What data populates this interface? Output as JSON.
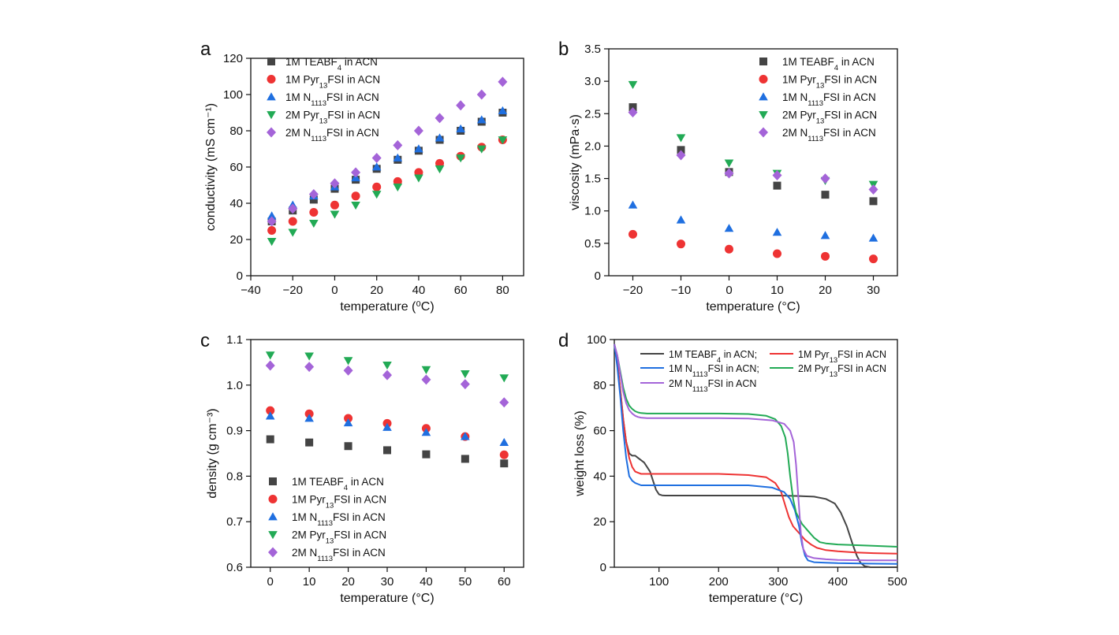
{
  "colors": {
    "teabf4_1m": "#444444",
    "pyr_1m": "#ee3333",
    "n1113_1m": "#1f6fe0",
    "pyr_2m": "#22aa55",
    "n1113_2m": "#a464d8"
  },
  "chart_data": [
    {
      "id": "a",
      "type": "scatter",
      "panel_label": "a",
      "xlabel": "temperature (⁰C)",
      "ylabel": "conductivity (mS cm⁻¹)",
      "xlim": [
        -40,
        90
      ],
      "ylim": [
        0,
        120
      ],
      "xticks": [
        -40,
        -20,
        0,
        20,
        40,
        60,
        80
      ],
      "yticks": [
        0,
        20,
        40,
        60,
        80,
        100,
        120
      ],
      "xtick_labels": [
        "−40",
        "−20",
        "0",
        "20",
        "40",
        "60",
        "80"
      ],
      "legend_position": "top-left",
      "series": [
        {
          "name": "1M TEABF4 in ACN",
          "marker": "square",
          "color_key": "teabf4_1m",
          "x": [
            -30,
            -20,
            -10,
            0,
            10,
            20,
            30,
            40,
            50,
            60,
            70,
            80
          ],
          "y": [
            30,
            36,
            42,
            48,
            53,
            59,
            64,
            69,
            75,
            80,
            85,
            90
          ]
        },
        {
          "name": "1M Pyr13FSI in ACN",
          "marker": "circle",
          "color_key": "pyr_1m",
          "x": [
            -30,
            -20,
            -10,
            0,
            10,
            20,
            30,
            40,
            50,
            60,
            70,
            80
          ],
          "y": [
            25,
            30,
            35,
            39,
            44,
            49,
            52,
            57,
            62,
            66,
            71,
            75
          ]
        },
        {
          "name": "1M N1113FSI in ACN",
          "marker": "triangle-up",
          "color_key": "n1113_1m",
          "x": [
            -30,
            -20,
            -10,
            0,
            10,
            20,
            30,
            40,
            50,
            60,
            70,
            80
          ],
          "y": [
            33,
            39,
            44,
            49,
            54,
            60,
            65,
            70,
            76,
            81,
            86,
            91
          ]
        },
        {
          "name": "2M Pyr13FSI in ACN",
          "marker": "triangle-down",
          "color_key": "pyr_2m",
          "x": [
            -30,
            -20,
            -10,
            0,
            10,
            20,
            30,
            40,
            50,
            60,
            70,
            80
          ],
          "y": [
            19,
            24,
            29,
            34,
            39,
            45,
            49,
            54,
            59,
            65,
            70,
            75
          ]
        },
        {
          "name": "2M N1113FSI in ACN",
          "marker": "diamond",
          "color_key": "n1113_2m",
          "x": [
            -30,
            -20,
            -10,
            0,
            10,
            20,
            30,
            40,
            50,
            60,
            70,
            80
          ],
          "y": [
            30,
            37,
            45,
            51,
            57,
            65,
            72,
            80,
            87,
            94,
            100,
            107
          ]
        }
      ]
    },
    {
      "id": "b",
      "type": "scatter",
      "panel_label": "b",
      "xlabel": "temperature (°C)",
      "ylabel": "viscosity (mPa·s)",
      "xlim": [
        -25,
        35
      ],
      "ylim": [
        0,
        3.5
      ],
      "xticks": [
        -20,
        -10,
        0,
        10,
        20,
        30
      ],
      "yticks": [
        0,
        0.5,
        1,
        1.5,
        2,
        2.5,
        3,
        3.5
      ],
      "xtick_labels": [
        "−20",
        "−10",
        "0",
        "10",
        "20",
        "30"
      ],
      "ytick_labels": [
        "0",
        "0.5",
        "1.0",
        "1.5",
        "2.0",
        "2.5",
        "3.0",
        "3.5"
      ],
      "legend_position": "top-right",
      "series": [
        {
          "name": "1M TEABF4 in ACN",
          "marker": "square",
          "color_key": "teabf4_1m",
          "x": [
            -20,
            -10,
            0,
            10,
            20,
            30
          ],
          "y": [
            2.6,
            1.94,
            1.6,
            1.39,
            1.25,
            1.15
          ]
        },
        {
          "name": "1M Pyr13FSI in ACN",
          "marker": "circle",
          "color_key": "pyr_1m",
          "x": [
            -20,
            -10,
            0,
            10,
            20,
            30
          ],
          "y": [
            0.64,
            0.49,
            0.41,
            0.34,
            0.3,
            0.26
          ]
        },
        {
          "name": "1M N1113FSI in ACN",
          "marker": "triangle-up",
          "color_key": "n1113_1m",
          "x": [
            -20,
            -10,
            0,
            10,
            20,
            30
          ],
          "y": [
            1.09,
            0.86,
            0.73,
            0.67,
            0.62,
            0.58
          ]
        },
        {
          "name": "2M Pyr13FSI in ACN",
          "marker": "triangle-down",
          "color_key": "pyr_2m",
          "x": [
            -20,
            -10,
            0,
            10,
            20,
            30
          ],
          "y": [
            2.95,
            2.13,
            1.74,
            1.58,
            1.47,
            1.41
          ]
        },
        {
          "name": "2M N1113FSI in ACN",
          "marker": "diamond",
          "color_key": "n1113_2m",
          "x": [
            -20,
            -10,
            0,
            10,
            20,
            30
          ],
          "y": [
            2.52,
            1.86,
            1.58,
            1.55,
            1.5,
            1.33
          ]
        }
      ]
    },
    {
      "id": "c",
      "type": "scatter",
      "panel_label": "c",
      "xlabel": "temperature (°C)",
      "ylabel": "density (g cm⁻³)",
      "xlim": [
        -5,
        65
      ],
      "ylim": [
        0.6,
        1.1
      ],
      "xticks": [
        0,
        10,
        20,
        30,
        40,
        50,
        60
      ],
      "yticks": [
        0.6,
        0.7,
        0.8,
        0.9,
        1.0,
        1.1
      ],
      "ytick_labels": [
        "0.6",
        "0.7",
        "0.8",
        "0.9",
        "1.0",
        "1.1"
      ],
      "legend_position": "bottom-left",
      "series": [
        {
          "name": "1M TEABF4 in ACN",
          "marker": "square",
          "color_key": "teabf4_1m",
          "x": [
            0,
            10,
            20,
            30,
            40,
            50,
            60
          ],
          "y": [
            0.881,
            0.874,
            0.866,
            0.857,
            0.848,
            0.838,
            0.828
          ]
        },
        {
          "name": "1M Pyr13FSI in ACN",
          "marker": "circle",
          "color_key": "pyr_1m",
          "x": [
            0,
            10,
            20,
            30,
            40,
            50,
            60
          ],
          "y": [
            0.944,
            0.937,
            0.927,
            0.916,
            0.905,
            0.887,
            0.847
          ]
        },
        {
          "name": "1M N1113FSI in ACN",
          "marker": "triangle-up",
          "color_key": "n1113_1m",
          "x": [
            0,
            10,
            20,
            30,
            40,
            50,
            60
          ],
          "y": [
            0.932,
            0.927,
            0.917,
            0.907,
            0.896,
            0.887,
            0.874
          ]
        },
        {
          "name": "2M Pyr13FSI in ACN",
          "marker": "triangle-down",
          "color_key": "pyr_2m",
          "x": [
            0,
            10,
            20,
            30,
            40,
            50,
            60
          ],
          "y": [
            1.066,
            1.064,
            1.054,
            1.044,
            1.034,
            1.025,
            1.016
          ]
        },
        {
          "name": "2M N1113FSI in ACN",
          "marker": "diamond",
          "color_key": "n1113_2m",
          "x": [
            0,
            10,
            20,
            30,
            40,
            50,
            60
          ],
          "y": [
            1.043,
            1.04,
            1.032,
            1.022,
            1.012,
            1.002,
            0.962
          ]
        }
      ]
    },
    {
      "id": "d",
      "type": "line",
      "panel_label": "d",
      "xlabel": "temperature (°C)",
      "ylabel": "weight loss (%)",
      "xlim": [
        25,
        500
      ],
      "ylim": [
        0,
        100
      ],
      "xticks": [
        100,
        200,
        300,
        400,
        500
      ],
      "yticks": [
        0,
        20,
        40,
        60,
        80,
        100
      ],
      "legend_position": "top",
      "series": [
        {
          "name": "1M TEABF4 in ACN;",
          "color_key": "teabf4_1m",
          "x": [
            25,
            30,
            35,
            40,
            45,
            50,
            55,
            60,
            65,
            70,
            75,
            80,
            85,
            90,
            95,
            100,
            105,
            110,
            200,
            300,
            330,
            360,
            380,
            395,
            405,
            415,
            425,
            432,
            438,
            445,
            455,
            500
          ],
          "y": [
            98,
            90,
            78,
            65,
            55,
            50,
            49,
            49,
            48,
            47,
            46,
            44,
            42,
            38,
            34,
            32,
            31.6,
            31.5,
            31.5,
            31.5,
            31.3,
            31,
            30,
            28,
            24,
            18,
            10,
            5,
            2,
            0.5,
            0,
            0
          ]
        },
        {
          "name": "1M Pyr13FSI in ACN",
          "color_key": "pyr_1m",
          "x": [
            25,
            30,
            35,
            40,
            45,
            50,
            55,
            60,
            65,
            70,
            80,
            100,
            150,
            200,
            250,
            280,
            295,
            305,
            312,
            318,
            325,
            335,
            345,
            355,
            365,
            380,
            400,
            430,
            460,
            500
          ],
          "y": [
            98,
            90,
            78,
            65,
            55,
            48,
            44,
            42,
            41.5,
            41,
            41,
            41,
            41,
            41,
            40.5,
            39.5,
            37,
            33,
            27,
            22,
            18,
            15,
            12,
            10,
            8.5,
            7.5,
            7,
            6.5,
            6.2,
            6
          ]
        },
        {
          "name": "1M N1113FSI in ACN;",
          "color_key": "n1113_1m",
          "x": [
            25,
            30,
            35,
            40,
            45,
            50,
            55,
            60,
            65,
            70,
            80,
            100,
            150,
            200,
            250,
            290,
            310,
            320,
            328,
            335,
            340,
            345,
            350,
            360,
            380,
            400,
            450,
            500
          ],
          "y": [
            98,
            88,
            75,
            60,
            48,
            40,
            38,
            37,
            36.5,
            36,
            36,
            36,
            36,
            36,
            36,
            35,
            33,
            30,
            25,
            18,
            10,
            5,
            3,
            2.2,
            2,
            1.8,
            1.6,
            1.5
          ]
        },
        {
          "name": "2M Pyr13FSI in ACN",
          "color_key": "pyr_2m",
          "x": [
            25,
            30,
            35,
            40,
            45,
            50,
            55,
            60,
            65,
            70,
            80,
            100,
            150,
            200,
            250,
            280,
            295,
            305,
            312,
            316,
            320,
            325,
            330,
            340,
            350,
            360,
            370,
            380,
            400,
            450,
            500
          ],
          "y": [
            98,
            93,
            86,
            79,
            74,
            71,
            69.5,
            68.5,
            68,
            67.7,
            67.5,
            67.5,
            67.5,
            67.5,
            67.3,
            66.5,
            65,
            62,
            57,
            50,
            40,
            30,
            24,
            19,
            16,
            13,
            11,
            10.5,
            10,
            9.5,
            9
          ]
        },
        {
          "name": "2M N1113FSI in ACN",
          "color_key": "n1113_2m",
          "x": [
            25,
            30,
            35,
            40,
            45,
            50,
            55,
            60,
            65,
            70,
            80,
            100,
            150,
            200,
            250,
            290,
            310,
            320,
            326,
            330,
            334,
            338,
            342,
            348,
            360,
            380,
            400,
            450,
            500
          ],
          "y": [
            98,
            93,
            85,
            77,
            72,
            69,
            67.5,
            66.5,
            66,
            65.7,
            65.5,
            65.5,
            65.5,
            65.5,
            65.3,
            64.5,
            63,
            60,
            55,
            45,
            30,
            15,
            8,
            5,
            4,
            3.5,
            3.2,
            3,
            3
          ]
        }
      ]
    }
  ]
}
